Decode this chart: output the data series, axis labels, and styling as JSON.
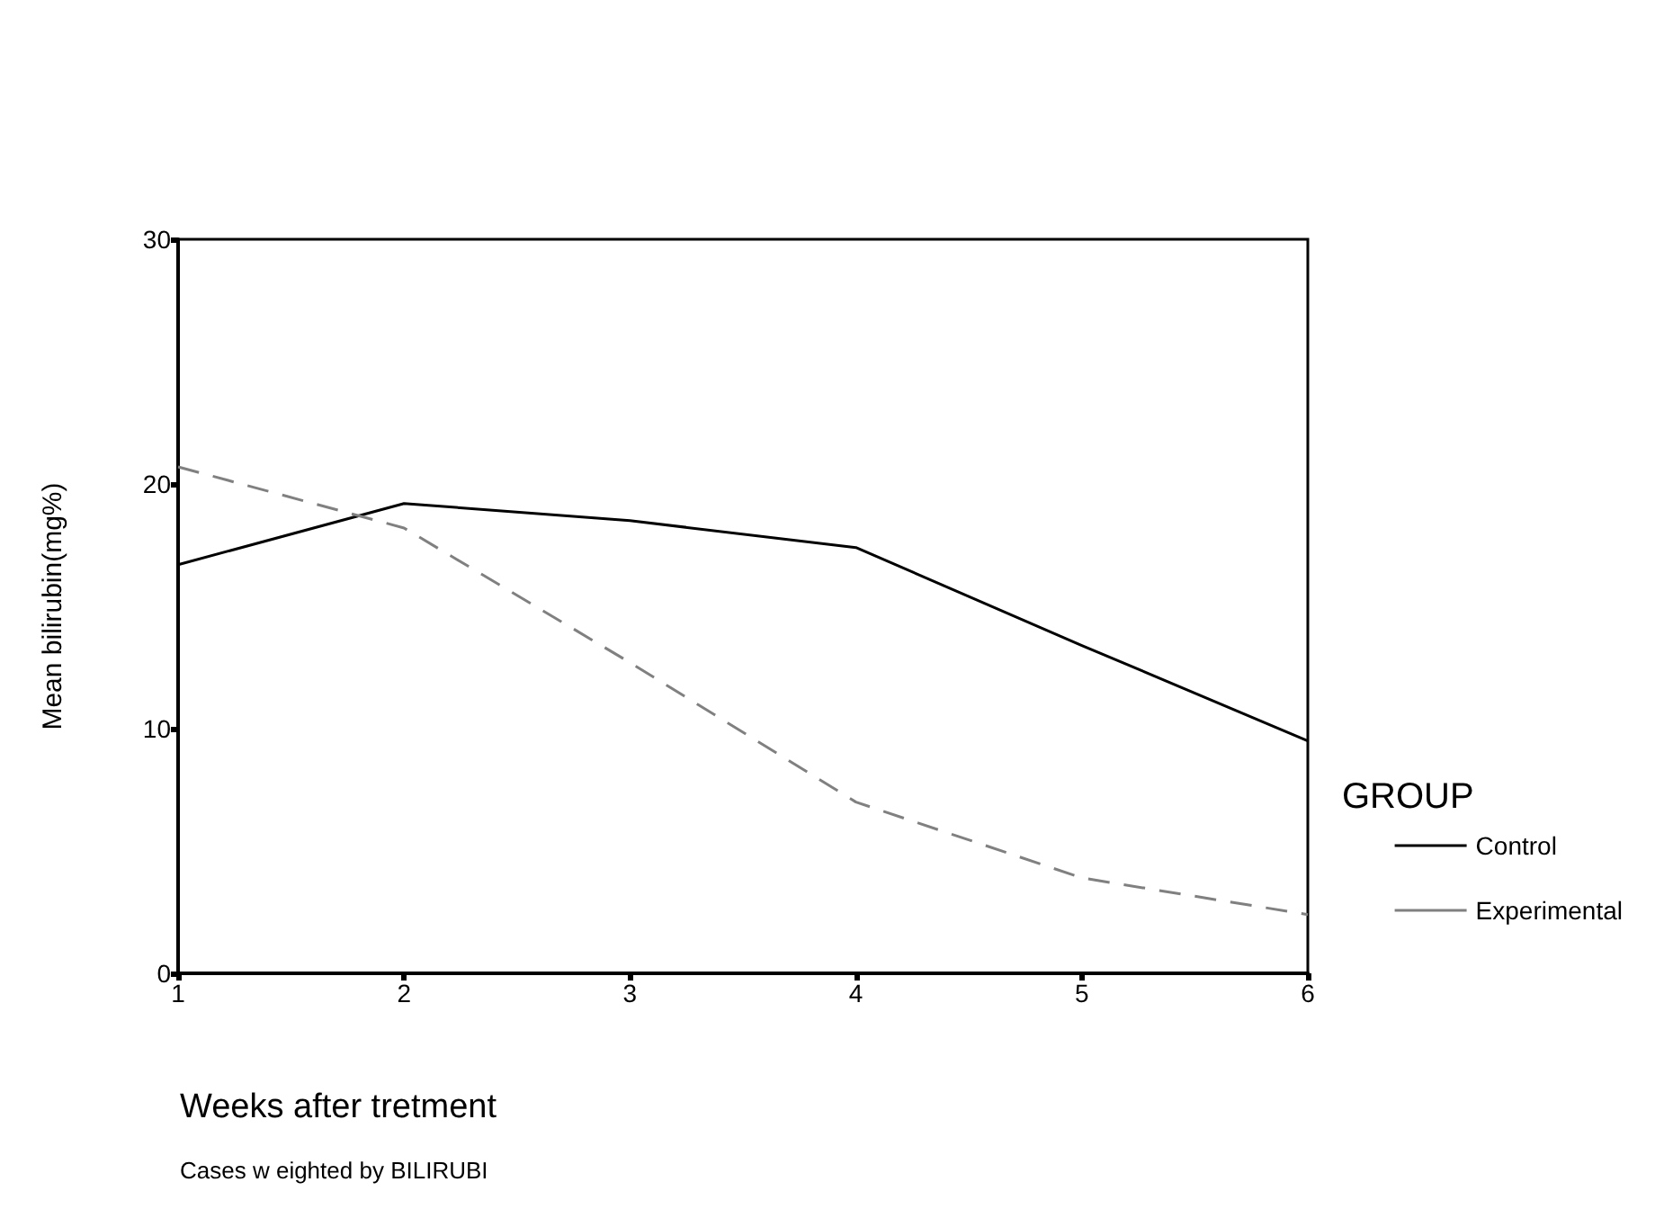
{
  "chart_data": {
    "type": "line",
    "xlabel": "Weeks after tretment",
    "ylabel": "Mean bilirubin(mg%)",
    "legend_title": "GROUP",
    "annotations": [
      "Cases w eighted by BILIRUBI"
    ],
    "x": [
      1,
      2,
      3,
      4,
      5,
      6
    ],
    "series": [
      {
        "name": "Control",
        "color": "#000000",
        "line_style": "solid",
        "values": [
          16.7,
          19.2,
          18.5,
          17.4,
          13.4,
          9.5
        ]
      },
      {
        "name": "Experimental",
        "color": "#808080",
        "line_style": "dashed",
        "values": [
          20.7,
          18.2,
          12.7,
          7.0,
          3.9,
          2.4
        ]
      }
    ],
    "xlim": [
      1,
      6
    ],
    "xticks": [
      1,
      2,
      3,
      4,
      5,
      6
    ],
    "ylim": [
      0,
      30
    ],
    "yticks": [
      0,
      10,
      20,
      30
    ],
    "grid": false,
    "legend": "right",
    "marker": "none"
  }
}
